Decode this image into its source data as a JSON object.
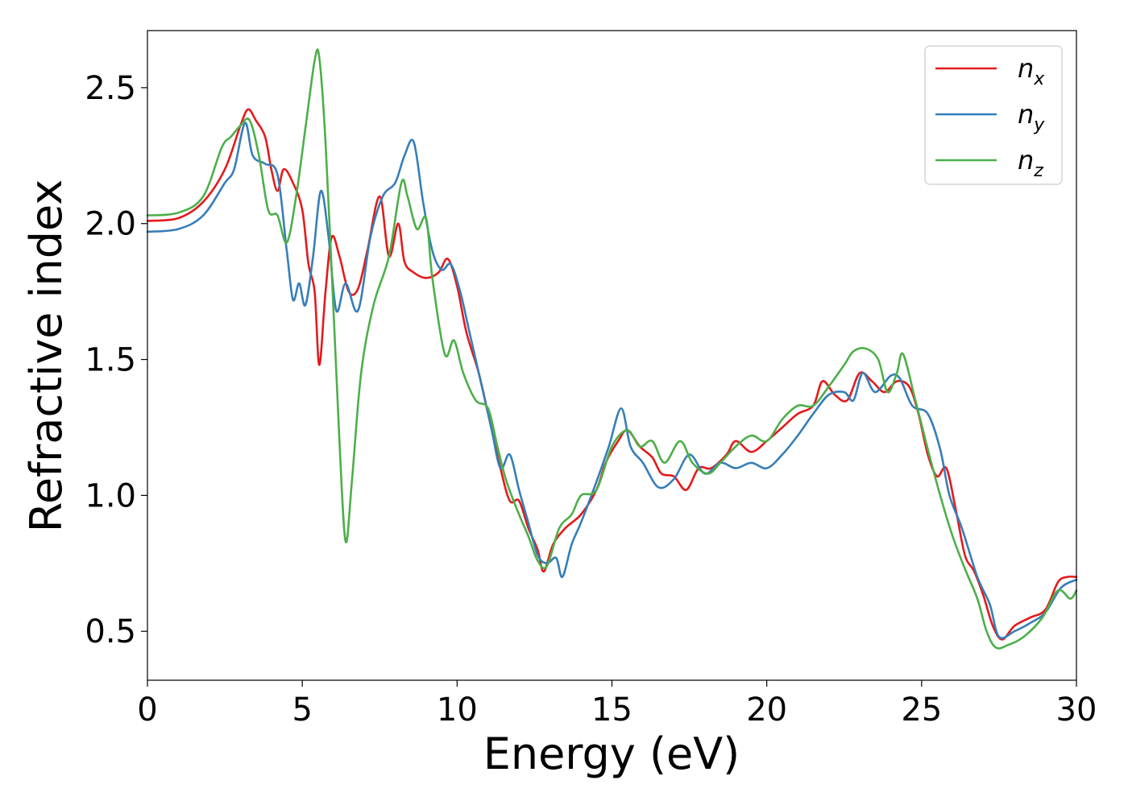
{
  "chart_data": {
    "type": "line",
    "title": "",
    "xlabel": "Energy (eV)",
    "ylabel": "Refractive index",
    "xlim": [
      0,
      30
    ],
    "ylim": [
      0.32,
      2.71
    ],
    "xticks": [
      0,
      5,
      10,
      15,
      20,
      25,
      30
    ],
    "xtick_labels": [
      "0",
      "5",
      "10",
      "15",
      "20",
      "25",
      "30"
    ],
    "yticks": [
      0.5,
      1.0,
      1.5,
      2.0,
      2.5
    ],
    "ytick_labels": [
      "0.5",
      "1.0",
      "1.5",
      "2.0",
      "2.5"
    ],
    "grid": false,
    "legend_position": "top-right",
    "series": [
      {
        "name": "n",
        "subscript": "x",
        "color": "#e41a1c",
        "points": [
          [
            0,
            2.01
          ],
          [
            1,
            2.02
          ],
          [
            1.8,
            2.08
          ],
          [
            2.5,
            2.2
          ],
          [
            3,
            2.36
          ],
          [
            3.25,
            2.42
          ],
          [
            3.5,
            2.38
          ],
          [
            3.8,
            2.32
          ],
          [
            4.0,
            2.2
          ],
          [
            4.2,
            2.12
          ],
          [
            4.4,
            2.2
          ],
          [
            4.7,
            2.15
          ],
          [
            5.0,
            2.05
          ],
          [
            5.2,
            1.85
          ],
          [
            5.4,
            1.75
          ],
          [
            5.55,
            1.48
          ],
          [
            5.75,
            1.75
          ],
          [
            5.95,
            1.95
          ],
          [
            6.2,
            1.88
          ],
          [
            6.5,
            1.75
          ],
          [
            6.8,
            1.76
          ],
          [
            7.1,
            1.9
          ],
          [
            7.5,
            2.1
          ],
          [
            7.8,
            1.88
          ],
          [
            8.1,
            2.0
          ],
          [
            8.3,
            1.86
          ],
          [
            8.6,
            1.82
          ],
          [
            9.0,
            1.8
          ],
          [
            9.4,
            1.82
          ],
          [
            9.7,
            1.87
          ],
          [
            10.0,
            1.77
          ],
          [
            10.3,
            1.6
          ],
          [
            10.7,
            1.45
          ],
          [
            11.0,
            1.3
          ],
          [
            11.4,
            1.1
          ],
          [
            11.7,
            0.98
          ],
          [
            12.0,
            0.98
          ],
          [
            12.3,
            0.88
          ],
          [
            12.6,
            0.8
          ],
          [
            12.8,
            0.72
          ],
          [
            13.1,
            0.82
          ],
          [
            13.5,
            0.88
          ],
          [
            14.0,
            0.93
          ],
          [
            14.5,
            1.02
          ],
          [
            14.8,
            1.12
          ],
          [
            15.2,
            1.2
          ],
          [
            15.5,
            1.24
          ],
          [
            15.9,
            1.18
          ],
          [
            16.3,
            1.14
          ],
          [
            16.6,
            1.08
          ],
          [
            17.0,
            1.07
          ],
          [
            17.4,
            1.02
          ],
          [
            17.8,
            1.1
          ],
          [
            18.2,
            1.1
          ],
          [
            18.7,
            1.15
          ],
          [
            19.0,
            1.2
          ],
          [
            19.5,
            1.16
          ],
          [
            20.0,
            1.2
          ],
          [
            20.5,
            1.25
          ],
          [
            21.0,
            1.3
          ],
          [
            21.5,
            1.33
          ],
          [
            21.8,
            1.42
          ],
          [
            22.2,
            1.37
          ],
          [
            22.6,
            1.35
          ],
          [
            23.0,
            1.45
          ],
          [
            23.4,
            1.42
          ],
          [
            23.8,
            1.38
          ],
          [
            24.2,
            1.42
          ],
          [
            24.6,
            1.4
          ],
          [
            24.9,
            1.3
          ],
          [
            25.2,
            1.15
          ],
          [
            25.5,
            1.07
          ],
          [
            25.8,
            1.1
          ],
          [
            26.1,
            0.95
          ],
          [
            26.4,
            0.78
          ],
          [
            26.7,
            0.72
          ],
          [
            27.0,
            0.63
          ],
          [
            27.3,
            0.52
          ],
          [
            27.6,
            0.47
          ],
          [
            28.0,
            0.52
          ],
          [
            28.5,
            0.55
          ],
          [
            29.0,
            0.58
          ],
          [
            29.4,
            0.68
          ],
          [
            29.7,
            0.7
          ],
          [
            30,
            0.7
          ]
        ]
      },
      {
        "name": "n",
        "subscript": "y",
        "color": "#377eb8",
        "points": [
          [
            0,
            1.97
          ],
          [
            1,
            1.98
          ],
          [
            1.8,
            2.03
          ],
          [
            2.5,
            2.15
          ],
          [
            2.8,
            2.2
          ],
          [
            3.15,
            2.37
          ],
          [
            3.4,
            2.25
          ],
          [
            3.8,
            2.22
          ],
          [
            4.2,
            2.18
          ],
          [
            4.5,
            1.9
          ],
          [
            4.7,
            1.72
          ],
          [
            4.9,
            1.78
          ],
          [
            5.1,
            1.7
          ],
          [
            5.35,
            1.88
          ],
          [
            5.6,
            2.12
          ],
          [
            5.85,
            1.95
          ],
          [
            6.1,
            1.68
          ],
          [
            6.4,
            1.78
          ],
          [
            6.8,
            1.68
          ],
          [
            7.2,
            1.95
          ],
          [
            7.6,
            2.1
          ],
          [
            8.0,
            2.15
          ],
          [
            8.3,
            2.25
          ],
          [
            8.6,
            2.3
          ],
          [
            8.9,
            2.08
          ],
          [
            9.2,
            1.9
          ],
          [
            9.5,
            1.83
          ],
          [
            9.8,
            1.85
          ],
          [
            10.1,
            1.75
          ],
          [
            10.4,
            1.6
          ],
          [
            10.8,
            1.4
          ],
          [
            11.1,
            1.25
          ],
          [
            11.4,
            1.1
          ],
          [
            11.7,
            1.15
          ],
          [
            12.0,
            1.02
          ],
          [
            12.3,
            0.9
          ],
          [
            12.6,
            0.78
          ],
          [
            12.9,
            0.75
          ],
          [
            13.2,
            0.77
          ],
          [
            13.4,
            0.7
          ],
          [
            13.7,
            0.82
          ],
          [
            14.0,
            0.9
          ],
          [
            14.5,
            1.05
          ],
          [
            14.9,
            1.18
          ],
          [
            15.3,
            1.32
          ],
          [
            15.6,
            1.18
          ],
          [
            16.0,
            1.12
          ],
          [
            16.5,
            1.03
          ],
          [
            17.0,
            1.06
          ],
          [
            17.5,
            1.15
          ],
          [
            18.0,
            1.08
          ],
          [
            18.5,
            1.12
          ],
          [
            19.0,
            1.1
          ],
          [
            19.5,
            1.12
          ],
          [
            20.0,
            1.1
          ],
          [
            20.5,
            1.15
          ],
          [
            21.0,
            1.22
          ],
          [
            21.5,
            1.3
          ],
          [
            22.0,
            1.37
          ],
          [
            22.5,
            1.38
          ],
          [
            22.8,
            1.35
          ],
          [
            23.1,
            1.45
          ],
          [
            23.5,
            1.38
          ],
          [
            24.0,
            1.44
          ],
          [
            24.3,
            1.43
          ],
          [
            24.7,
            1.33
          ],
          [
            25.2,
            1.3
          ],
          [
            25.6,
            1.17
          ],
          [
            25.9,
            1.0
          ],
          [
            26.3,
            0.88
          ],
          [
            26.8,
            0.7
          ],
          [
            27.2,
            0.6
          ],
          [
            27.5,
            0.48
          ],
          [
            28.0,
            0.5
          ],
          [
            28.5,
            0.53
          ],
          [
            29.0,
            0.57
          ],
          [
            29.5,
            0.66
          ],
          [
            30,
            0.69
          ]
        ]
      },
      {
        "name": "n",
        "subscript": "z",
        "color": "#4daf4a",
        "points": [
          [
            0,
            2.03
          ],
          [
            1,
            2.04
          ],
          [
            1.8,
            2.1
          ],
          [
            2.4,
            2.28
          ],
          [
            2.7,
            2.32
          ],
          [
            3.0,
            2.36
          ],
          [
            3.3,
            2.38
          ],
          [
            3.6,
            2.25
          ],
          [
            3.9,
            2.05
          ],
          [
            4.2,
            2.03
          ],
          [
            4.5,
            1.93
          ],
          [
            4.8,
            2.1
          ],
          [
            5.1,
            2.35
          ],
          [
            5.4,
            2.6
          ],
          [
            5.55,
            2.61
          ],
          [
            5.75,
            2.3
          ],
          [
            6.0,
            1.7
          ],
          [
            6.2,
            1.2
          ],
          [
            6.4,
            0.83
          ],
          [
            6.6,
            1.05
          ],
          [
            6.9,
            1.45
          ],
          [
            7.3,
            1.7
          ],
          [
            7.8,
            1.88
          ],
          [
            8.2,
            2.15
          ],
          [
            8.4,
            2.1
          ],
          [
            8.7,
            1.98
          ],
          [
            9.0,
            2.02
          ],
          [
            9.2,
            1.8
          ],
          [
            9.6,
            1.52
          ],
          [
            9.9,
            1.57
          ],
          [
            10.2,
            1.45
          ],
          [
            10.6,
            1.35
          ],
          [
            11.0,
            1.32
          ],
          [
            11.3,
            1.18
          ],
          [
            11.6,
            1.05
          ],
          [
            12.0,
            0.93
          ],
          [
            12.3,
            0.85
          ],
          [
            12.6,
            0.76
          ],
          [
            12.9,
            0.74
          ],
          [
            13.3,
            0.88
          ],
          [
            13.7,
            0.93
          ],
          [
            14.0,
            1.0
          ],
          [
            14.5,
            1.02
          ],
          [
            15.0,
            1.18
          ],
          [
            15.5,
            1.24
          ],
          [
            15.9,
            1.18
          ],
          [
            16.3,
            1.2
          ],
          [
            16.7,
            1.12
          ],
          [
            17.2,
            1.2
          ],
          [
            17.6,
            1.12
          ],
          [
            18.1,
            1.08
          ],
          [
            18.5,
            1.12
          ],
          [
            19.0,
            1.18
          ],
          [
            19.5,
            1.22
          ],
          [
            20.0,
            1.2
          ],
          [
            20.5,
            1.28
          ],
          [
            21.0,
            1.33
          ],
          [
            21.5,
            1.33
          ],
          [
            22.0,
            1.4
          ],
          [
            22.5,
            1.48
          ],
          [
            22.8,
            1.53
          ],
          [
            23.2,
            1.54
          ],
          [
            23.6,
            1.5
          ],
          [
            23.9,
            1.38
          ],
          [
            24.2,
            1.45
          ],
          [
            24.4,
            1.52
          ],
          [
            24.8,
            1.35
          ],
          [
            25.2,
            1.17
          ],
          [
            25.6,
            1.0
          ],
          [
            26.0,
            0.85
          ],
          [
            26.4,
            0.73
          ],
          [
            26.8,
            0.62
          ],
          [
            27.1,
            0.5
          ],
          [
            27.4,
            0.44
          ],
          [
            27.8,
            0.45
          ],
          [
            28.3,
            0.48
          ],
          [
            28.9,
            0.55
          ],
          [
            29.4,
            0.65
          ],
          [
            29.8,
            0.62
          ],
          [
            30,
            0.65
          ]
        ]
      }
    ]
  }
}
